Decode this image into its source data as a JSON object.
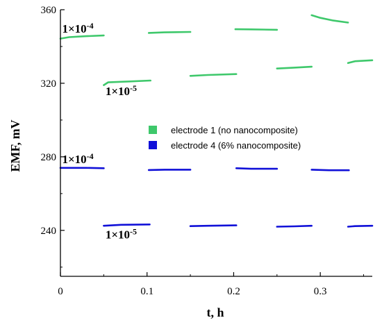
{
  "chart_data": {
    "type": "line",
    "title": "",
    "xlabel": "t, h",
    "ylabel": "EMF, mV",
    "xlim": [
      0,
      0.36
    ],
    "ylim": [
      215,
      360
    ],
    "x_ticks": [
      0,
      0.1,
      0.2,
      0.3
    ],
    "x_tick_labels": [
      "0",
      "0.1",
      "0.2",
      "0.3"
    ],
    "y_ticks": [
      240,
      280,
      320,
      360
    ],
    "y_tick_labels": [
      "240",
      "280",
      "320",
      "360"
    ],
    "grid": false,
    "legend_position": "center-right",
    "series": [
      {
        "name": "electrode 1 (no nanocomposite)",
        "color": "#3ec86b",
        "segments": [
          [
            [
              0.0,
              344.3
            ],
            [
              0.01,
              345.1
            ],
            [
              0.03,
              345.6
            ],
            [
              0.05,
              346.0
            ]
          ],
          [
            [
              0.102,
              347.4
            ],
            [
              0.12,
              347.7
            ],
            [
              0.15,
              347.9
            ]
          ],
          [
            [
              0.202,
              349.4
            ],
            [
              0.22,
              349.3
            ],
            [
              0.25,
              349.1
            ]
          ],
          [
            [
              0.29,
              357.0
            ],
            [
              0.3,
              355.6
            ],
            [
              0.315,
              354.1
            ],
            [
              0.332,
              353.0
            ]
          ],
          [
            [
              0.05,
              319.0
            ],
            [
              0.055,
              320.5
            ],
            [
              0.08,
              321.0
            ],
            [
              0.104,
              321.5
            ]
          ],
          [
            [
              0.15,
              324.0
            ],
            [
              0.17,
              324.5
            ],
            [
              0.203,
              325.0
            ]
          ],
          [
            [
              0.25,
              328.0
            ],
            [
              0.27,
              328.5
            ],
            [
              0.29,
              329.0
            ]
          ],
          [
            [
              0.332,
              331.0
            ],
            [
              0.34,
              332.0
            ],
            [
              0.36,
              332.5
            ]
          ]
        ]
      },
      {
        "name": "electrode 4 (6% nanocomposite)",
        "color": "#1010d8",
        "segments": [
          [
            [
              0.0,
              274.0
            ],
            [
              0.03,
              274.0
            ],
            [
              0.05,
              273.8
            ]
          ],
          [
            [
              0.102,
              272.8
            ],
            [
              0.12,
              273.0
            ],
            [
              0.15,
              273.0
            ]
          ],
          [
            [
              0.203,
              273.8
            ],
            [
              0.22,
              273.5
            ],
            [
              0.25,
              273.5
            ]
          ],
          [
            [
              0.29,
              273.0
            ],
            [
              0.31,
              272.7
            ],
            [
              0.333,
              272.7
            ]
          ],
          [
            [
              0.05,
              242.5
            ],
            [
              0.07,
              243.0
            ],
            [
              0.103,
              243.2
            ]
          ],
          [
            [
              0.15,
              242.3
            ],
            [
              0.17,
              242.5
            ],
            [
              0.203,
              242.7
            ]
          ],
          [
            [
              0.25,
              242.0
            ],
            [
              0.27,
              242.2
            ],
            [
              0.29,
              242.5
            ]
          ],
          [
            [
              0.332,
              242.0
            ],
            [
              0.34,
              242.3
            ],
            [
              0.36,
              242.5
            ]
          ]
        ]
      }
    ],
    "annotations": [
      {
        "base": "1×10",
        "exp": "-4",
        "x": 0.002,
        "y": 347.5
      },
      {
        "base": "1×10",
        "exp": "-5",
        "x": 0.052,
        "y": 313.5
      },
      {
        "base": "1×10",
        "exp": "-4",
        "x": 0.002,
        "y": 276.5
      },
      {
        "base": "1×10",
        "exp": "-5",
        "x": 0.052,
        "y": 235.5
      }
    ]
  }
}
